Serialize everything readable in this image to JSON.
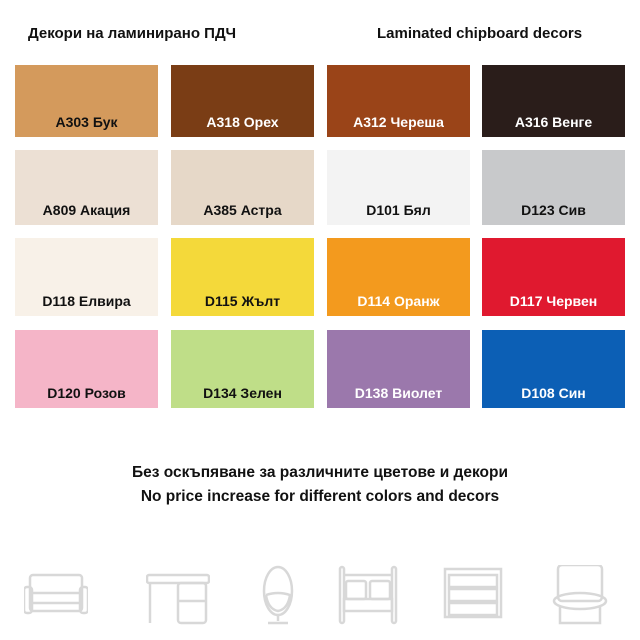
{
  "header": {
    "title_bg": "Декори на ламинирано ПДЧ",
    "title_en": "Laminated chipboard decors"
  },
  "swatches": [
    {
      "label": "A303 Бук",
      "color": "#d49a5c",
      "text": "#111"
    },
    {
      "label": "A318 Орех",
      "color": "#7a3d15",
      "text": "#fff"
    },
    {
      "label": "A312 Череша",
      "color": "#9a4418",
      "text": "#fff"
    },
    {
      "label": "A316 Венге",
      "color": "#2a1d1a",
      "text": "#fff"
    },
    {
      "label": "A809 Акация",
      "color": "#ece0d4",
      "text": "#111"
    },
    {
      "label": "A385 Астра",
      "color": "#e6d8c8",
      "text": "#111"
    },
    {
      "label": "D101 Бял",
      "color": "#f3f3f3",
      "text": "#111"
    },
    {
      "label": "D123 Сив",
      "color": "#c8c9cb",
      "text": "#111"
    },
    {
      "label": "D118 Елвира",
      "color": "#f8f1e8",
      "text": "#111"
    },
    {
      "label": "D115 Жълт",
      "color": "#f4d93a",
      "text": "#111"
    },
    {
      "label": "D114 Оранж",
      "color": "#f39a1e",
      "text": "#fff"
    },
    {
      "label": "D117 Червен",
      "color": "#e0192f",
      "text": "#fff"
    },
    {
      "label": "D120 Розов",
      "color": "#f5b5c8",
      "text": "#111"
    },
    {
      "label": "D134 Зелен",
      "color": "#bfde88",
      "text": "#111"
    },
    {
      "label": "D138 Виолет",
      "color": "#9b78ac",
      "text": "#fff"
    },
    {
      "label": "D108 Син",
      "color": "#0c5fb5",
      "text": "#fff"
    }
  ],
  "notes": {
    "bg": "Без оскъпяване за различните цветове и декори",
    "en": "No price increase for different colors and decors"
  },
  "icons": [
    "sofa-icon",
    "desk-icon",
    "egg-chair-icon",
    "bed-icon",
    "dresser-icon",
    "armchair-icon"
  ],
  "icon_color": "#d8d8d8"
}
